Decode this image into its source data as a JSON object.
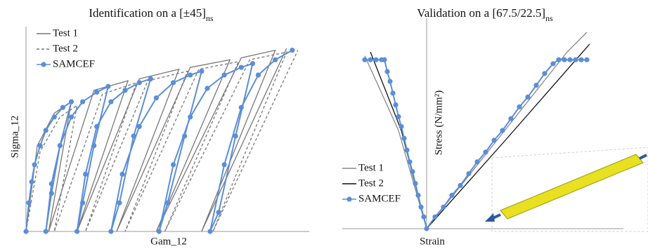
{
  "chart_data": [
    {
      "type": "line",
      "title": "Identification  on a [±45]",
      "title_subscript": "ns",
      "x_label": "Gam_12",
      "y_label": "Sigma_12",
      "xlim": [
        0,
        100
      ],
      "ylim": [
        0,
        100
      ],
      "series": [
        {
          "name": "Test 1",
          "color": "#777777",
          "dash": false,
          "marker": false,
          "x": [
            0,
            4,
            10,
            16,
            8,
            24,
            36,
            18,
            40,
            54,
            32,
            58,
            72,
            46,
            76,
            88,
            62,
            92
          ],
          "values": [
            0,
            45,
            62,
            68,
            0,
            74,
            79,
            0,
            80,
            85,
            0,
            86,
            90,
            0,
            91,
            95,
            0,
            96
          ]
        },
        {
          "name": "Test 2",
          "color": "#777777",
          "dash": true,
          "marker": false,
          "x": [
            0,
            5,
            12,
            18,
            10,
            27,
            39,
            21,
            43,
            57,
            35,
            61,
            75,
            49,
            79,
            92,
            66,
            96
          ],
          "values": [
            0,
            42,
            60,
            66,
            0,
            72,
            78,
            0,
            79,
            84,
            0,
            85,
            89,
            0,
            90,
            94,
            0,
            95
          ]
        },
        {
          "name": "SAMCEF",
          "color": "#5b8ed8",
          "dash": false,
          "marker": true,
          "x": [
            0,
            1,
            2,
            3,
            5,
            7,
            10,
            13,
            16,
            12,
            9,
            7,
            9,
            12,
            16,
            20,
            25,
            29,
            24,
            20,
            18,
            21,
            25,
            30,
            35,
            40,
            44,
            38,
            33,
            30,
            34,
            40,
            46,
            52,
            58,
            62,
            56,
            50,
            47,
            52,
            58,
            64,
            70,
            76,
            80,
            74,
            68,
            65,
            70,
            76,
            82,
            88,
            94
          ],
          "values": [
            0,
            15,
            26,
            35,
            45,
            53,
            60,
            65,
            68,
            45,
            20,
            0,
            25,
            45,
            60,
            68,
            73,
            76,
            45,
            15,
            0,
            30,
            55,
            68,
            74,
            78,
            80,
            50,
            15,
            0,
            30,
            55,
            70,
            78,
            82,
            84,
            50,
            15,
            0,
            35,
            60,
            75,
            82,
            86,
            88,
            50,
            10,
            0,
            35,
            65,
            82,
            90,
            95
          ]
        }
      ]
    },
    {
      "type": "line",
      "title": "Validation  on a [67.5/22.5]",
      "title_subscript": "ns",
      "x_label": "Strain",
      "y_label": "Stress (N/mm²)",
      "xlim": [
        -30,
        70
      ],
      "ylim": [
        0,
        100
      ],
      "series": [
        {
          "name": "Test 1",
          "color": "#888888",
          "dash": false,
          "marker": false,
          "x": [
            -22,
            -10,
            0,
            25,
            50,
            57
          ],
          "values": [
            88,
            50,
            0,
            45,
            90,
            100
          ]
        },
        {
          "name": "Test 2",
          "color": "#111111",
          "dash": false,
          "marker": false,
          "x": [
            -20,
            -9,
            0,
            28,
            58
          ],
          "values": [
            90,
            50,
            0,
            45,
            94
          ]
        },
        {
          "name": "SAMCEF",
          "color": "#5b8ed8",
          "dash": false,
          "marker": true,
          "x": [
            -22,
            -20,
            -18,
            -16,
            -15,
            -14,
            -13,
            -12,
            -11,
            -10,
            -9,
            -8,
            -7,
            -6,
            -5,
            -4,
            -3,
            -2,
            -1,
            0,
            3,
            6,
            9,
            12,
            15,
            18,
            21,
            24,
            27,
            30,
            33,
            36,
            39,
            42,
            45,
            47,
            49,
            51,
            53,
            55,
            57
          ],
          "values": [
            86,
            86,
            86,
            86,
            86,
            80,
            75,
            69,
            63,
            57,
            52,
            46,
            40,
            34,
            29,
            23,
            17,
            11,
            6,
            0,
            6,
            11,
            17,
            22,
            28,
            34,
            39,
            45,
            50,
            56,
            62,
            67,
            73,
            79,
            84,
            86,
            86,
            86,
            86,
            86,
            86
          ]
        }
      ]
    }
  ]
}
